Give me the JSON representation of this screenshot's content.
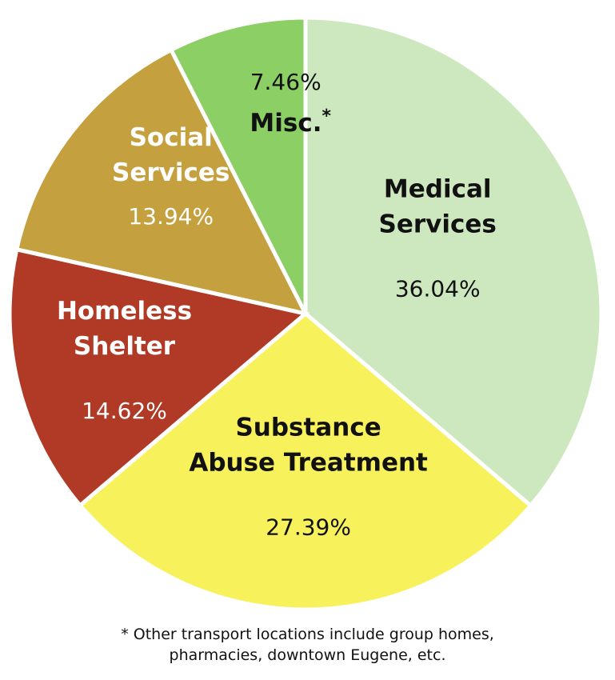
{
  "chart_data": {
    "type": "pie",
    "start_angle_deg": 0,
    "direction": "clockwise",
    "slices": [
      {
        "label_lines": [
          "Medical",
          "Services"
        ],
        "value": 36.04,
        "value_label": "36.04%",
        "color": "#cde8bf",
        "label_color": "#111111",
        "value_color": "#111111",
        "marker": ""
      },
      {
        "label_lines": [
          "Substance",
          "Abuse Treatment"
        ],
        "value": 27.39,
        "value_label": "27.39%",
        "color": "#f7f15c",
        "label_color": "#111111",
        "value_color": "#111111",
        "marker": ""
      },
      {
        "label_lines": [
          "Homeless",
          "Shelter"
        ],
        "value": 14.62,
        "value_label": "14.62%",
        "color": "#b03a25",
        "label_color": "#ffffff",
        "value_color": "#ffffff",
        "marker": ""
      },
      {
        "label_lines": [
          "Social",
          "Services"
        ],
        "value": 13.94,
        "value_label": "13.94%",
        "color": "#c4a13e",
        "label_color": "#ffffff",
        "value_color": "#ffffff",
        "marker": ""
      },
      {
        "label_lines": [
          "Misc."
        ],
        "value": 7.46,
        "value_label": "7.46%",
        "color": "#8ccf64",
        "label_color": "#111111",
        "value_color": "#111111",
        "marker": "*"
      }
    ],
    "footnote_lines": [
      "* Other transport locations include group homes,",
      "pharmacies, downtown Eugene, etc."
    ]
  }
}
